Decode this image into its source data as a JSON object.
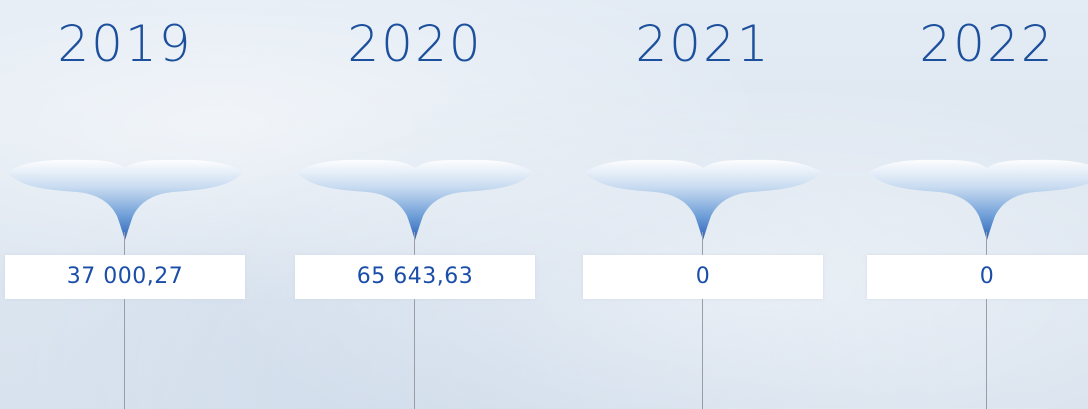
{
  "accent_color": "#1c4f9c",
  "items": [
    {
      "year": "2019",
      "value": "37 000,27"
    },
    {
      "year": "2020",
      "value": "65 643,63"
    },
    {
      "year": "2021",
      "value": "0"
    },
    {
      "year": "2022",
      "value": "0"
    }
  ]
}
